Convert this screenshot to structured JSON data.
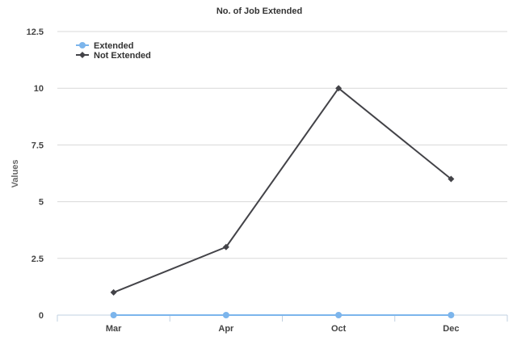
{
  "chart_data": {
    "type": "line",
    "title": "No. of Job Extended",
    "xlabel": "",
    "ylabel": "Values",
    "categories": [
      "Mar",
      "Apr",
      "Oct",
      "Dec"
    ],
    "ylim": [
      0,
      12.5
    ],
    "yticks": [
      0,
      2.5,
      5,
      7.5,
      10,
      12.5
    ],
    "ytick_labels": [
      "0",
      "2.5",
      "5",
      "7.5",
      "10",
      "12.5"
    ],
    "grid": true,
    "legend": "top-left",
    "series": [
      {
        "name": "Extended",
        "values": [
          0,
          0,
          0,
          0
        ],
        "color": "#7cb5ec",
        "marker": "circle"
      },
      {
        "name": "Not Extended",
        "values": [
          1,
          3,
          10,
          6
        ],
        "color": "#434348",
        "marker": "diamond"
      }
    ]
  }
}
